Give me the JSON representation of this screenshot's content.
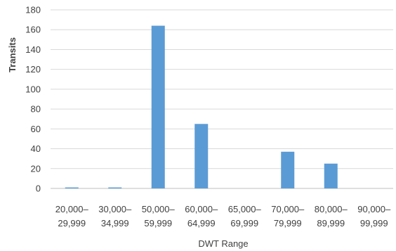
{
  "chart_data": {
    "type": "bar",
    "categories": [
      [
        "20,000–",
        "29,999"
      ],
      [
        "30,000–",
        "34,999"
      ],
      [
        "50,000–",
        "59,999"
      ],
      [
        "60,000–",
        "64,999"
      ],
      [
        "65,000–",
        "69,999"
      ],
      [
        "70,000–",
        "79,999"
      ],
      [
        "80,000–",
        "89,999"
      ],
      [
        "90,000–",
        "99,999"
      ]
    ],
    "values": [
      1,
      1,
      164,
      65,
      0,
      37,
      25,
      0
    ],
    "xlabel": "DWT Range",
    "ylabel": "Transits",
    "ylim": [
      0,
      180
    ],
    "yticks": [
      0,
      20,
      40,
      60,
      80,
      100,
      120,
      140,
      160,
      180
    ],
    "grid": true,
    "bar_color": "#5b9bd5",
    "grid_color": "#d9d9d9"
  }
}
